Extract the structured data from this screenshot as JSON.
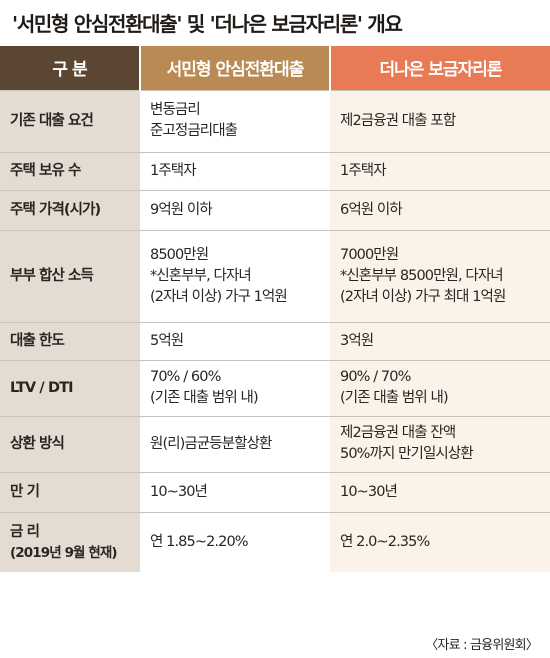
{
  "title": "'서민형 안심전환대출' 및 '더나은 보금자리론' 개요",
  "headers": {
    "category": "구 분",
    "product1": "서민형 안심전환대출",
    "product2": "더나은 보금자리론"
  },
  "rows": [
    {
      "label": "기존 대출 요건",
      "sub": "",
      "p1": [
        "변동금리",
        "준고정금리대출"
      ],
      "p2": [
        "제2금융권 대출 포함"
      ]
    },
    {
      "label": "주택 보유 수",
      "sub": "",
      "p1": [
        "1주택자"
      ],
      "p2": [
        "1주택자"
      ]
    },
    {
      "label": "주택 가격(시가)",
      "sub": "",
      "p1": [
        "9억원 이하"
      ],
      "p2": [
        "6억원 이하"
      ]
    },
    {
      "label": "부부 합산 소득",
      "sub": "",
      "p1": [
        "8500만원",
        "*신혼부부, 다자녀",
        "(2자녀 이상) 가구 1억원"
      ],
      "p2": [
        "7000만원",
        "*신혼부부 8500만원, 다자녀",
        "(2자녀 이상) 가구 최대 1억원"
      ]
    },
    {
      "label": "대출 한도",
      "sub": "",
      "p1": [
        "5억원"
      ],
      "p2": [
        "3억원"
      ]
    },
    {
      "label": "LTV / DTI",
      "sub": "",
      "p1": [
        "70% / 60%",
        "(기존 대출 범위 내)"
      ],
      "p2": [
        "90% / 70%",
        "(기존 대출 범위 내)"
      ]
    },
    {
      "label": "상환 방식",
      "sub": "",
      "p1": [
        "원(리)금균등분할상환"
      ],
      "p2": [
        "제2금융권 대출 잔액",
        "50%까지 만기일시상환"
      ]
    },
    {
      "label": "만 기",
      "sub": "",
      "p1": [
        "10~30년"
      ],
      "p2": [
        "10~30년"
      ]
    },
    {
      "label": "금 리",
      "sub": "(2019년 9월 현재)",
      "p1": [
        "연 1.85~2.20%"
      ],
      "p2": [
        "연 2.0~2.35%"
      ]
    }
  ],
  "source": "〈자료 : 금융위원회〉"
}
